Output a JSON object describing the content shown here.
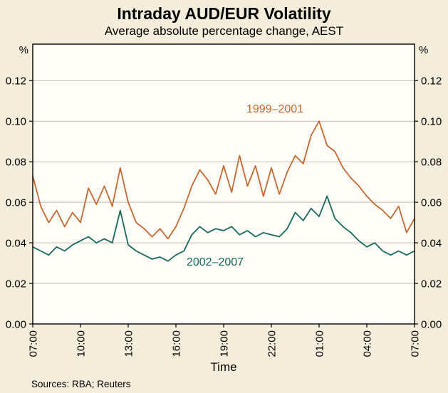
{
  "chart_data": {
    "type": "line",
    "title": "Intraday AUD/EUR Volatility",
    "subtitle": "Average absolute percentage change, AEST",
    "xlabel": "Time",
    "ylabel_left": "%",
    "ylabel_right": "%",
    "source": "Sources: RBA; Reuters",
    "grid": "horizontal",
    "legend_position": "inline-annotations",
    "xlim": [
      0,
      48
    ],
    "ylim": [
      0,
      0.138
    ],
    "y_ticks": [
      0.0,
      0.02,
      0.04,
      0.06,
      0.08,
      0.1,
      0.12
    ],
    "x_tick_positions": [
      0,
      6,
      12,
      18,
      24,
      30,
      36,
      42,
      48
    ],
    "x_tick_labels": [
      "07:00",
      "10:00",
      "13:00",
      "16:00",
      "19:00",
      "22:00",
      "01:00",
      "04:00",
      "07:00"
    ],
    "series": [
      {
        "name": "1999–2001",
        "color": "#C8682F",
        "values": [
          0.073,
          0.058,
          0.05,
          0.056,
          0.048,
          0.055,
          0.05,
          0.067,
          0.059,
          0.068,
          0.058,
          0.077,
          0.06,
          0.05,
          0.047,
          0.043,
          0.047,
          0.042,
          0.048,
          0.057,
          0.068,
          0.076,
          0.071,
          0.064,
          0.078,
          0.065,
          0.083,
          0.068,
          0.078,
          0.063,
          0.077,
          0.064,
          0.075,
          0.083,
          0.079,
          0.093,
          0.1,
          0.088,
          0.085,
          0.077,
          0.072,
          0.068,
          0.063,
          0.059,
          0.056,
          0.052,
          0.058,
          0.045,
          0.052
        ]
      },
      {
        "name": "2002–2007",
        "color": "#17695C",
        "values": [
          0.038,
          0.036,
          0.034,
          0.038,
          0.036,
          0.039,
          0.041,
          0.043,
          0.04,
          0.042,
          0.04,
          0.056,
          0.039,
          0.036,
          0.034,
          0.032,
          0.033,
          0.031,
          0.034,
          0.036,
          0.044,
          0.048,
          0.045,
          0.047,
          0.046,
          0.048,
          0.044,
          0.046,
          0.043,
          0.045,
          0.044,
          0.043,
          0.047,
          0.055,
          0.051,
          0.057,
          0.053,
          0.063,
          0.052,
          0.048,
          0.045,
          0.041,
          0.038,
          0.04,
          0.036,
          0.034,
          0.036,
          0.034,
          0.036
        ]
      }
    ]
  },
  "colors": {
    "background": "#F4EDDA",
    "plot_background": "#FFFEF8",
    "gridline": "#B9B9B0",
    "axis": "#000000"
  }
}
